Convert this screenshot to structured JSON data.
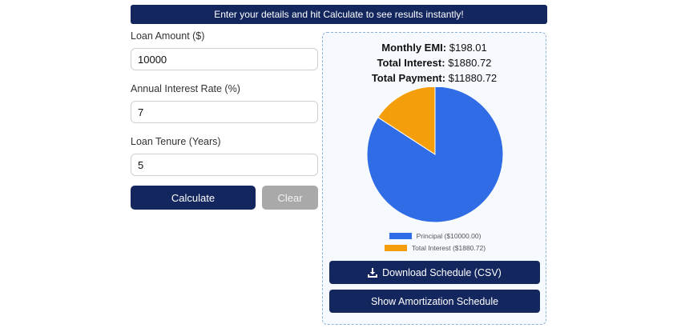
{
  "banner": {
    "text": "Enter your details and hit Calculate to see results instantly!"
  },
  "form": {
    "loan_amount": {
      "label": "Loan Amount ($)",
      "value": "10000"
    },
    "interest_rate": {
      "label": "Annual Interest Rate (%)",
      "value": "7"
    },
    "tenure": {
      "label": "Loan Tenure (Years)",
      "value": "5"
    },
    "calculate_label": "Calculate",
    "clear_label": "Clear"
  },
  "results": {
    "emi_label": "Monthly EMI:",
    "emi_value": "$198.01",
    "interest_label": "Total Interest:",
    "interest_value": "$1880.72",
    "payment_label": "Total Payment:",
    "payment_value": "$11880.72"
  },
  "chart_data": {
    "type": "pie",
    "categories": [
      "Principal ($10000.00)",
      "Total Interest ($1880.72)"
    ],
    "values": [
      10000.0,
      1880.72
    ],
    "colors": [
      "#2f6ce5",
      "#f59e0b"
    ],
    "legend": "bottom"
  },
  "actions": {
    "download_label": "Download Schedule (CSV)",
    "download_icon": "download-icon",
    "amortization_label": "Show Amortization Schedule"
  }
}
